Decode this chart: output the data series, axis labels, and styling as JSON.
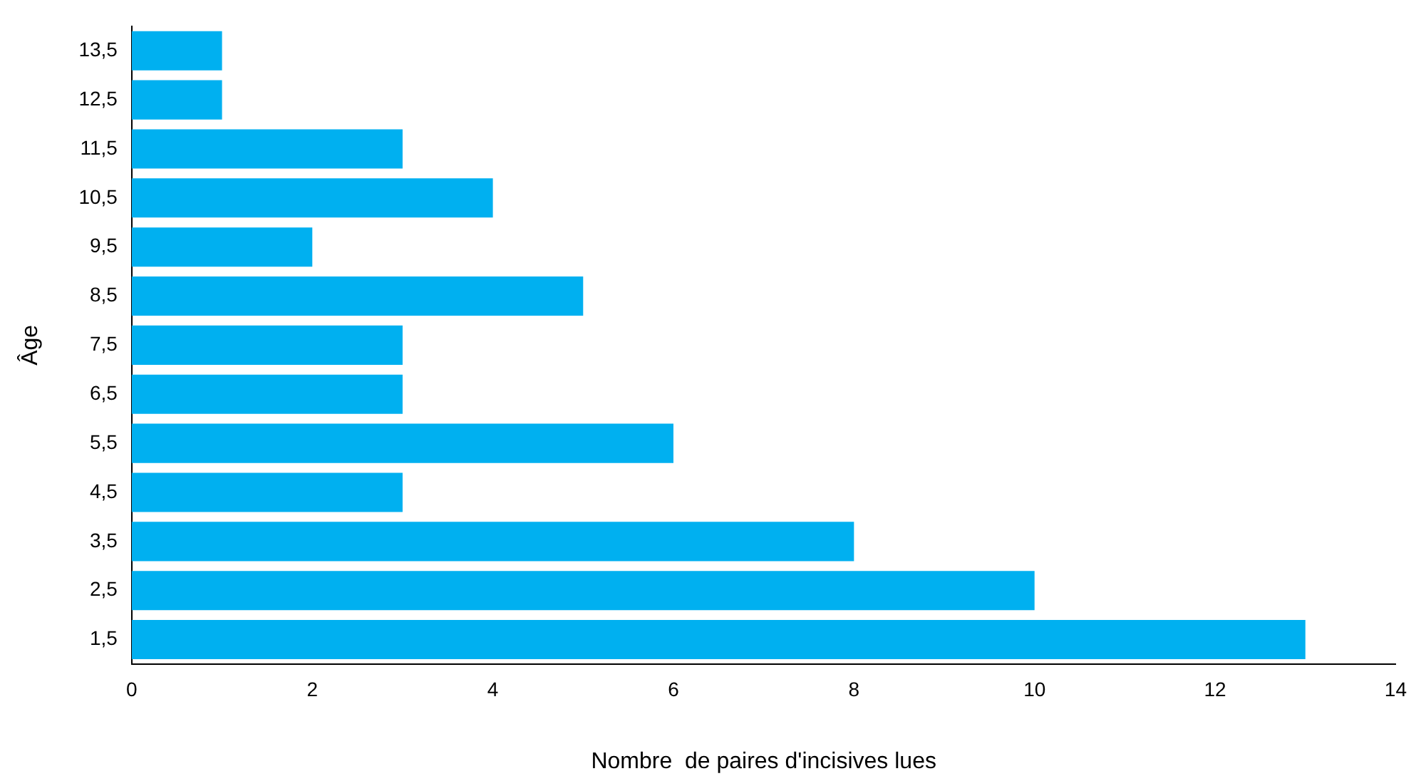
{
  "chart_data": {
    "type": "bar",
    "orientation": "horizontal",
    "xlabel": "Nombre  de paires d'incisives lues",
    "ylabel": "Âge",
    "categories": [
      "13,5",
      "12,5",
      "11,5",
      "10,5",
      "9,5",
      "8,5",
      "7,5",
      "6,5",
      "5,5",
      "4,5",
      "3,5",
      "2,5",
      "1,5"
    ],
    "values": [
      1,
      1,
      3,
      4,
      2,
      5,
      3,
      3,
      6,
      3,
      8,
      10,
      13
    ],
    "color": "#00b0f0",
    "xlim": [
      0,
      14
    ],
    "xticks": [
      0,
      2,
      4,
      6,
      8,
      10,
      12,
      14
    ],
    "grid": false,
    "legend": false
  }
}
